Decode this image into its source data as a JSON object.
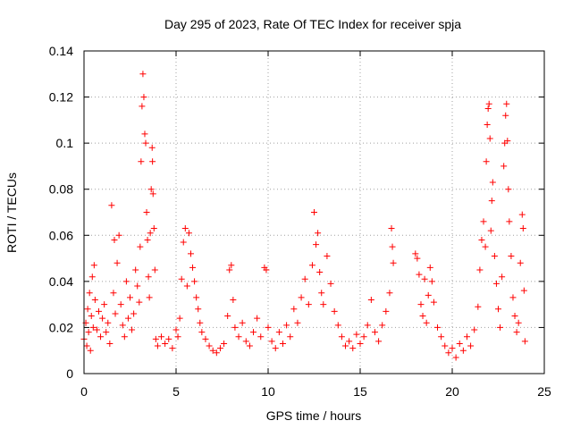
{
  "chart_data": {
    "type": "scatter",
    "title": "Day 295 of 2023, Rate Of TEC Index for receiver spja",
    "xlabel": "GPS time / hours",
    "ylabel": "ROTI / TECUs",
    "xlim": [
      0,
      25
    ],
    "ylim": [
      0,
      0.14
    ],
    "xticks": [
      0,
      5,
      10,
      15,
      20,
      25
    ],
    "yticks": [
      0,
      0.02,
      0.04,
      0.06,
      0.08,
      0.1,
      0.12,
      0.14
    ],
    "xtick_labels": [
      "0",
      "5",
      "10",
      "15",
      "20",
      "25"
    ],
    "ytick_labels": [
      "0",
      "0.02",
      "0.04",
      "0.06",
      "0.08",
      "0.1",
      "0.12",
      "0.14"
    ],
    "grid": true,
    "marker": "+",
    "color": "#ff0000",
    "series": [
      {
        "points": [
          [
            0.0,
            0.015
          ],
          [
            0.1,
            0.022
          ],
          [
            0.15,
            0.012
          ],
          [
            0.2,
            0.028
          ],
          [
            0.25,
            0.018
          ],
          [
            0.3,
            0.035
          ],
          [
            0.35,
            0.01
          ],
          [
            0.4,
            0.025
          ],
          [
            0.45,
            0.042
          ],
          [
            0.5,
            0.02
          ],
          [
            0.55,
            0.047
          ],
          [
            0.6,
            0.032
          ],
          [
            0.7,
            0.019
          ],
          [
            0.8,
            0.027
          ],
          [
            0.9,
            0.016
          ],
          [
            1.0,
            0.024
          ],
          [
            1.1,
            0.03
          ],
          [
            1.2,
            0.018
          ],
          [
            1.3,
            0.022
          ],
          [
            1.4,
            0.013
          ],
          [
            1.5,
            0.073
          ],
          [
            1.6,
            0.035
          ],
          [
            1.65,
            0.058
          ],
          [
            1.7,
            0.026
          ],
          [
            1.8,
            0.048
          ],
          [
            1.9,
            0.06
          ],
          [
            2.0,
            0.03
          ],
          [
            2.1,
            0.021
          ],
          [
            2.2,
            0.016
          ],
          [
            2.3,
            0.04
          ],
          [
            2.4,
            0.024
          ],
          [
            2.5,
            0.033
          ],
          [
            2.6,
            0.019
          ],
          [
            2.7,
            0.026
          ],
          [
            2.8,
            0.045
          ],
          [
            2.9,
            0.038
          ],
          [
            3.0,
            0.031
          ],
          [
            3.05,
            0.055
          ],
          [
            3.1,
            0.092
          ],
          [
            3.15,
            0.116
          ],
          [
            3.2,
            0.13
          ],
          [
            3.25,
            0.12
          ],
          [
            3.3,
            0.104
          ],
          [
            3.35,
            0.1
          ],
          [
            3.4,
            0.07
          ],
          [
            3.45,
            0.058
          ],
          [
            3.5,
            0.042
          ],
          [
            3.55,
            0.033
          ],
          [
            3.6,
            0.061
          ],
          [
            3.65,
            0.08
          ],
          [
            3.7,
            0.098
          ],
          [
            3.72,
            0.092
          ],
          [
            3.75,
            0.078
          ],
          [
            3.8,
            0.063
          ],
          [
            3.85,
            0.045
          ],
          [
            3.9,
            0.015
          ],
          [
            4.0,
            0.012
          ],
          [
            4.2,
            0.016
          ],
          [
            4.4,
            0.013
          ],
          [
            4.6,
            0.015
          ],
          [
            4.8,
            0.011
          ],
          [
            5.0,
            0.019
          ],
          [
            5.1,
            0.016
          ],
          [
            5.2,
            0.024
          ],
          [
            5.3,
            0.041
          ],
          [
            5.4,
            0.057
          ],
          [
            5.5,
            0.063
          ],
          [
            5.6,
            0.038
          ],
          [
            5.7,
            0.061
          ],
          [
            5.8,
            0.052
          ],
          [
            5.9,
            0.046
          ],
          [
            6.0,
            0.04
          ],
          [
            6.1,
            0.033
          ],
          [
            6.2,
            0.028
          ],
          [
            6.3,
            0.022
          ],
          [
            6.4,
            0.018
          ],
          [
            6.6,
            0.015
          ],
          [
            6.8,
            0.012
          ],
          [
            7.0,
            0.01
          ],
          [
            7.2,
            0.009
          ],
          [
            7.4,
            0.011
          ],
          [
            7.6,
            0.013
          ],
          [
            7.8,
            0.025
          ],
          [
            7.9,
            0.045
          ],
          [
            8.0,
            0.047
          ],
          [
            8.1,
            0.032
          ],
          [
            8.2,
            0.02
          ],
          [
            8.4,
            0.016
          ],
          [
            8.6,
            0.022
          ],
          [
            8.8,
            0.014
          ],
          [
            9.0,
            0.012
          ],
          [
            9.2,
            0.018
          ],
          [
            9.4,
            0.024
          ],
          [
            9.6,
            0.016
          ],
          [
            9.8,
            0.046
          ],
          [
            9.9,
            0.045
          ],
          [
            10.0,
            0.02
          ],
          [
            10.2,
            0.014
          ],
          [
            10.4,
            0.011
          ],
          [
            10.6,
            0.018
          ],
          [
            10.8,
            0.013
          ],
          [
            11.0,
            0.021
          ],
          [
            11.2,
            0.016
          ],
          [
            11.4,
            0.028
          ],
          [
            11.6,
            0.022
          ],
          [
            11.8,
            0.033
          ],
          [
            12.0,
            0.041
          ],
          [
            12.2,
            0.03
          ],
          [
            12.4,
            0.047
          ],
          [
            12.5,
            0.07
          ],
          [
            12.6,
            0.056
          ],
          [
            12.7,
            0.061
          ],
          [
            12.8,
            0.044
          ],
          [
            12.9,
            0.035
          ],
          [
            13.0,
            0.03
          ],
          [
            13.2,
            0.051
          ],
          [
            13.4,
            0.039
          ],
          [
            13.6,
            0.027
          ],
          [
            13.8,
            0.021
          ],
          [
            14.0,
            0.016
          ],
          [
            14.2,
            0.012
          ],
          [
            14.4,
            0.014
          ],
          [
            14.6,
            0.011
          ],
          [
            14.8,
            0.017
          ],
          [
            15.0,
            0.013
          ],
          [
            15.2,
            0.016
          ],
          [
            15.4,
            0.021
          ],
          [
            15.6,
            0.032
          ],
          [
            15.8,
            0.018
          ],
          [
            16.0,
            0.014
          ],
          [
            16.2,
            0.021
          ],
          [
            16.4,
            0.027
          ],
          [
            16.6,
            0.035
          ],
          [
            16.7,
            0.063
          ],
          [
            16.75,
            0.055
          ],
          [
            16.8,
            0.048
          ],
          [
            18.0,
            0.052
          ],
          [
            18.1,
            0.05
          ],
          [
            18.2,
            0.043
          ],
          [
            18.3,
            0.03
          ],
          [
            18.4,
            0.025
          ],
          [
            18.5,
            0.041
          ],
          [
            18.6,
            0.022
          ],
          [
            18.7,
            0.034
          ],
          [
            18.8,
            0.046
          ],
          [
            18.9,
            0.04
          ],
          [
            19.0,
            0.031
          ],
          [
            19.2,
            0.02
          ],
          [
            19.4,
            0.016
          ],
          [
            19.6,
            0.012
          ],
          [
            19.8,
            0.009
          ],
          [
            20.0,
            0.011
          ],
          [
            20.2,
            0.007
          ],
          [
            20.4,
            0.013
          ],
          [
            20.6,
            0.01
          ],
          [
            20.8,
            0.016
          ],
          [
            21.0,
            0.012
          ],
          [
            21.2,
            0.019
          ],
          [
            21.4,
            0.029
          ],
          [
            21.5,
            0.045
          ],
          [
            21.6,
            0.058
          ],
          [
            21.7,
            0.066
          ],
          [
            21.8,
            0.055
          ],
          [
            21.85,
            0.092
          ],
          [
            21.9,
            0.108
          ],
          [
            21.95,
            0.115
          ],
          [
            22.0,
            0.117
          ],
          [
            22.05,
            0.102
          ],
          [
            22.1,
            0.062
          ],
          [
            22.15,
            0.075
          ],
          [
            22.2,
            0.083
          ],
          [
            22.3,
            0.051
          ],
          [
            22.4,
            0.039
          ],
          [
            22.5,
            0.028
          ],
          [
            22.6,
            0.02
          ],
          [
            22.7,
            0.042
          ],
          [
            22.8,
            0.09
          ],
          [
            22.85,
            0.1
          ],
          [
            22.9,
            0.112
          ],
          [
            22.95,
            0.117
          ],
          [
            23.0,
            0.101
          ],
          [
            23.05,
            0.08
          ],
          [
            23.1,
            0.066
          ],
          [
            23.2,
            0.051
          ],
          [
            23.3,
            0.033
          ],
          [
            23.4,
            0.025
          ],
          [
            23.5,
            0.018
          ],
          [
            23.6,
            0.022
          ],
          [
            23.7,
            0.048
          ],
          [
            23.8,
            0.069
          ],
          [
            23.85,
            0.063
          ],
          [
            23.9,
            0.036
          ],
          [
            23.95,
            0.014
          ]
        ]
      }
    ]
  }
}
